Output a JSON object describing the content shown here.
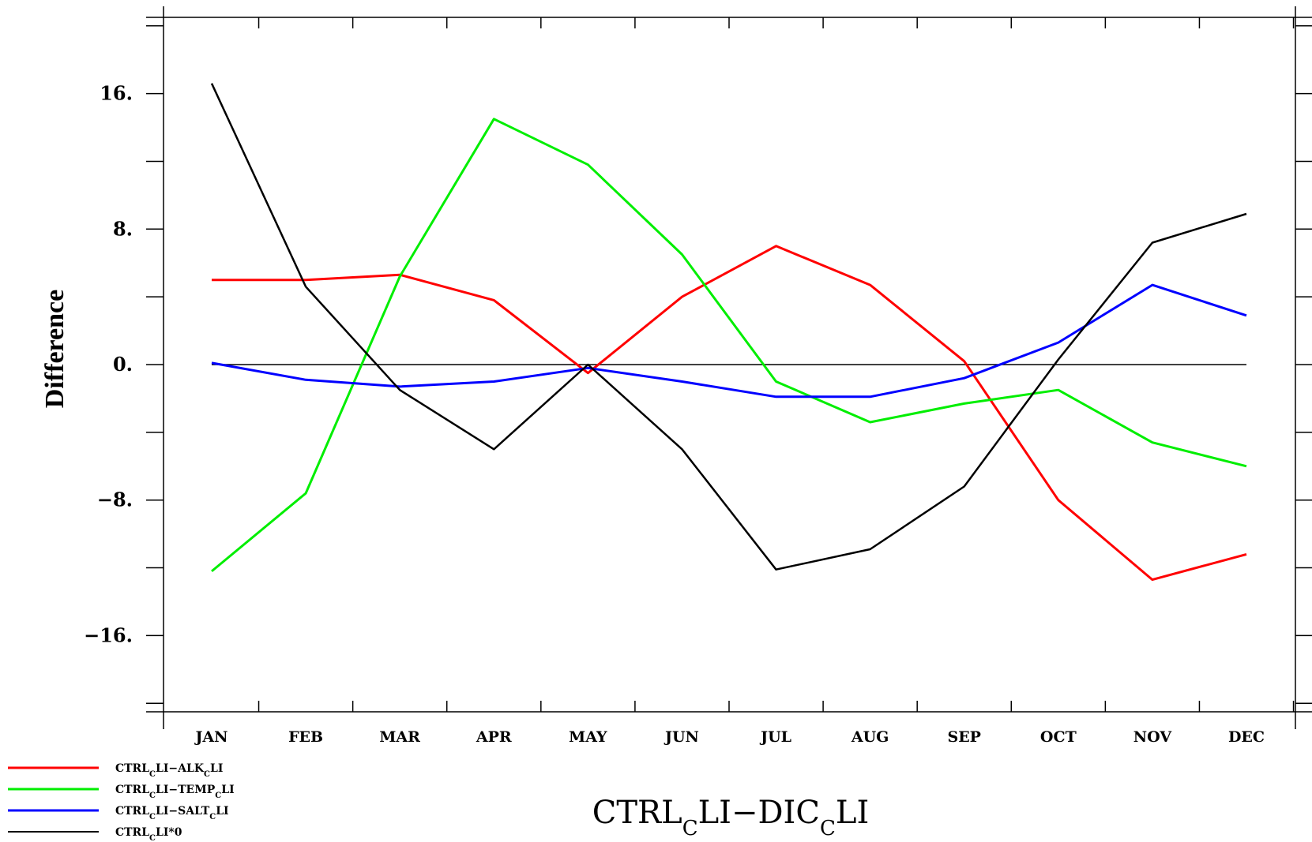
{
  "chart_data": {
    "type": "line",
    "title": "CTRL_CLI−DIC_CLI",
    "title_parts": [
      "CTRL",
      "C",
      "LI−DIC",
      "C",
      "LI"
    ],
    "xlabel": "",
    "ylabel": "Difference",
    "categories": [
      "JAN",
      "FEB",
      "MAR",
      "APR",
      "MAY",
      "JUN",
      "JUL",
      "AUG",
      "SEP",
      "OCT",
      "NOV",
      "DEC"
    ],
    "ylim": [
      -20.5,
      20.5
    ],
    "yticks": [
      -16,
      -8,
      0,
      8,
      16
    ],
    "ytick_labels": [
      "−16.",
      "−8.",
      "0.",
      "8.",
      "16."
    ],
    "zero_line": true,
    "grid": false,
    "legend_position": "bottom-left",
    "series": [
      {
        "name": "CTRL_CLI−ALK_CLI",
        "legend_parts": [
          "CTRL",
          "C",
          "LI−ALK",
          "C",
          "LI"
        ],
        "color": "#ff0000",
        "values": [
          5.0,
          5.0,
          5.3,
          3.8,
          -0.5,
          4.0,
          7.0,
          4.7,
          0.2,
          -8.0,
          -12.7,
          -11.2
        ]
      },
      {
        "name": "CTRL_CLI−TEMP_CLI",
        "legend_parts": [
          "CTRL",
          "C",
          "LI−TEMP",
          "C",
          "LI"
        ],
        "color": "#00ee00",
        "values": [
          -12.2,
          -7.6,
          5.2,
          14.5,
          11.8,
          6.5,
          -1.0,
          -3.4,
          -2.3,
          -1.5,
          -4.6,
          -6.0
        ]
      },
      {
        "name": "CTRL_CLI−SALT_CLI",
        "legend_parts": [
          "CTRL",
          "C",
          "LI−SALT",
          "C",
          "LI"
        ],
        "color": "#0000ff",
        "values": [
          0.1,
          -0.9,
          -1.3,
          -1.0,
          -0.2,
          -1.0,
          -1.9,
          -1.9,
          -0.8,
          1.3,
          4.7,
          2.9
        ]
      },
      {
        "name": "CTRL_CLI*0",
        "legend_parts": [
          "CTRL",
          "C",
          "LI*0",
          "",
          ""
        ],
        "color": "#000000",
        "values": [
          16.6,
          4.6,
          -1.5,
          -5.0,
          0.0,
          -5.0,
          -12.1,
          -10.9,
          -7.2,
          0.3,
          7.2,
          8.9
        ]
      }
    ]
  }
}
